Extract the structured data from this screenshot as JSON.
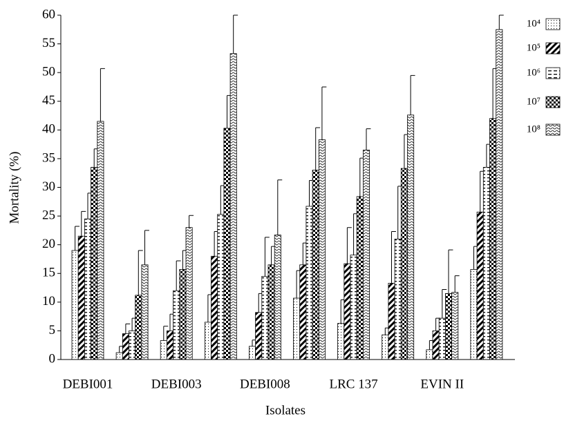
{
  "chart_data": {
    "type": "bar",
    "x_label": "Isolates",
    "y_label": "Mortality (%)",
    "categories": [
      "DEBI001",
      null,
      "DEBI003",
      null,
      "DEBI008",
      null,
      "LRC 137",
      null,
      "EVIN II",
      null
    ],
    "series": [
      {
        "name": "10⁴",
        "color": "#000000",
        "pattern": "dots",
        "values": [
          19,
          1.2,
          3.3,
          6.5,
          2.3,
          10.7,
          6.3,
          4.3,
          1.7,
          15.7
        ],
        "errors": [
          4.2,
          1.1,
          2.5,
          4.8,
          1.1,
          4.8,
          4.1,
          1.2,
          1.6,
          4
        ]
      },
      {
        "name": "10⁵",
        "color": "#000000",
        "pattern": "hatch",
        "values": [
          21.5,
          4.5,
          5,
          18,
          8.2,
          16.5,
          16.7,
          13.3,
          5,
          25.7
        ],
        "errors": [
          4.3,
          1.7,
          2.9,
          4.3,
          3.3,
          3.8,
          6.3,
          9,
          2.2,
          7.1
        ]
      },
      {
        "name": "10⁶",
        "color": "#000000",
        "pattern": "dashes",
        "values": [
          24.5,
          5,
          12,
          25.3,
          14.5,
          26.7,
          18.2,
          21,
          7.2,
          33.5
        ],
        "errors": [
          4.5,
          2.2,
          5.2,
          5,
          6.8,
          4.5,
          7.2,
          9.2,
          5,
          4
        ]
      },
      {
        "name": "10⁷",
        "color": "#000000",
        "pattern": "checker",
        "values": [
          33.5,
          11.2,
          15.7,
          40.3,
          16.5,
          33,
          28.4,
          33.3,
          11.5,
          42
        ],
        "errors": [
          3.2,
          7.8,
          3.3,
          5.7,
          3.2,
          7.4,
          6.7,
          5.9,
          7.6,
          8.7
        ]
      },
      {
        "name": "10⁸",
        "color": "#000000",
        "pattern": "waves",
        "values": [
          41.5,
          16.5,
          23,
          53.3,
          21.7,
          38.3,
          36.5,
          42.6,
          11.7,
          57.5
        ],
        "errors": [
          9.2,
          6,
          2.1,
          6.7,
          9.6,
          9.2,
          3.7,
          6.9,
          2.9,
          2.5
        ]
      }
    ],
    "ylim": [
      0,
      60
    ],
    "yticks": [
      0,
      5,
      10,
      15,
      20,
      25,
      30,
      35,
      40,
      45,
      50,
      55,
      60
    ],
    "grid": false,
    "legend": "right"
  }
}
